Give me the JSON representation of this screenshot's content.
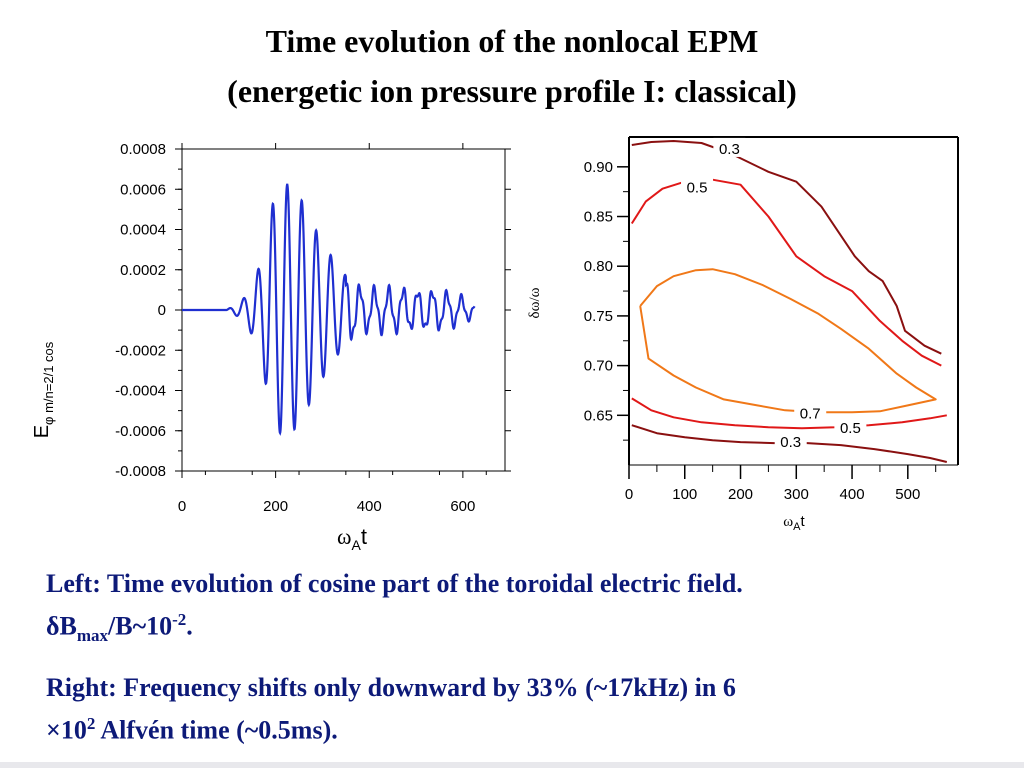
{
  "title": {
    "line1": "Time evolution of the nonlocal EPM",
    "line2": "(energetic ion pressure profile I: classical)"
  },
  "chart_data": [
    {
      "type": "line",
      "ylabel_main": "E",
      "ylabel_sub": "φ m/n=2/1 cos",
      "xlabel_main": "ω",
      "xlabel_sub": "A",
      "xlabel_tail": "t",
      "xlim": [
        0,
        690
      ],
      "ylim": [
        -0.0008,
        0.0008
      ],
      "x_ticks": [
        "0",
        "200",
        "400",
        "600"
      ],
      "x_tick_values": [
        0,
        200,
        400,
        600
      ],
      "y_ticks": [
        "0.0008",
        "0.0006",
        "0.0004",
        "0.0002",
        "0",
        "-0.0002",
        "-0.0004",
        "-0.0006",
        "-0.0008"
      ],
      "y_tick_values": [
        0.0008,
        0.0006,
        0.0004,
        0.0002,
        0,
        -0.0002,
        -0.0004,
        -0.0006,
        -0.0008
      ],
      "line_color": "#1f2fd0",
      "envelope": {
        "x": [
          0,
          95,
          110,
          125,
          140,
          155,
          170,
          185,
          200,
          215,
          230,
          245,
          260,
          275,
          290,
          310,
          330,
          350,
          370,
          390,
          410,
          430,
          450,
          470,
          490,
          510,
          530,
          550,
          570,
          590,
          610,
          625
        ],
        "amplitude": [
          0,
          0,
          2e-05,
          4e-05,
          8e-05,
          0.00015,
          0.00025,
          0.00045,
          0.00058,
          0.00063,
          0.00062,
          0.00058,
          0.00053,
          0.00045,
          0.00038,
          0.0003,
          0.00023,
          0.00017,
          0.00012,
          0.0001,
          0.0001,
          0.0001,
          0.0001,
          0.0001,
          9e-05,
          9e-05,
          9e-05,
          9e-05,
          8e-05,
          7e-05,
          5e-05,
          3e-05
        ]
      },
      "period": 31
    },
    {
      "type": "contour",
      "ylabel": "δω/ω",
      "xlabel_main": "ω",
      "xlabel_sub": "A",
      "xlabel_tail": "t",
      "xlim": [
        0,
        590
      ],
      "ylim": [
        0.6,
        0.93
      ],
      "x_ticks": [
        "0",
        "100",
        "200",
        "300",
        "400",
        "500"
      ],
      "x_tick_values": [
        0,
        100,
        200,
        300,
        400,
        500
      ],
      "y_ticks": [
        "0.90",
        "0.85",
        "0.80",
        "0.75",
        "0.70",
        "0.65"
      ],
      "y_tick_values": [
        0.9,
        0.85,
        0.8,
        0.75,
        0.7,
        0.65
      ],
      "contours": [
        {
          "level": "0.3",
          "color": "#8a1010",
          "paths": [
            {
              "x": [
                5,
                40,
                80,
                130,
                180,
                250,
                300,
                345,
                375,
                405,
                430,
                455,
                480,
                495,
                530,
                560
              ],
              "y": [
                0.922,
                0.925,
                0.926,
                0.924,
                0.914,
                0.895,
                0.885,
                0.86,
                0.835,
                0.81,
                0.795,
                0.785,
                0.76,
                0.735,
                0.72,
                0.712
              ]
            },
            {
              "x": [
                5,
                50,
                100,
                150,
                200,
                260,
                320,
                380,
                440,
                500,
                540,
                570
              ],
              "y": [
                0.64,
                0.632,
                0.628,
                0.625,
                0.623,
                0.622,
                0.622,
                0.62,
                0.616,
                0.611,
                0.607,
                0.603
              ]
            }
          ],
          "labels": [
            {
              "text": "0.3",
              "x": 180,
              "y": 0.919
            },
            {
              "text": "0.3",
              "x": 290,
              "y": 0.624
            }
          ]
        },
        {
          "level": "0.5",
          "color": "#e01818",
          "paths": [
            {
              "x": [
                5,
                30,
                60,
                100,
                150,
                200,
                250,
                300,
                350,
                400,
                450,
                490,
                525,
                560
              ],
              "y": [
                0.843,
                0.865,
                0.878,
                0.885,
                0.887,
                0.882,
                0.85,
                0.81,
                0.79,
                0.775,
                0.745,
                0.725,
                0.71,
                0.7
              ]
            },
            {
              "x": [
                5,
                40,
                80,
                130,
                190,
                250,
                310,
                370,
                430,
                490,
                540,
                570
              ],
              "y": [
                0.667,
                0.655,
                0.648,
                0.643,
                0.64,
                0.638,
                0.637,
                0.638,
                0.64,
                0.643,
                0.647,
                0.65
              ]
            }
          ],
          "labels": [
            {
              "text": "0.5",
              "x": 122,
              "y": 0.88
            },
            {
              "text": "0.5",
              "x": 397,
              "y": 0.638
            }
          ]
        },
        {
          "level": "0.7",
          "color": "#f07818",
          "paths": [
            {
              "x": [
                20,
                50,
                80,
                120,
                150,
                190,
                240,
                290,
                340,
                380,
                430,
                480,
                515,
                550,
                500,
                450,
                400,
                340,
                280,
                230,
                170,
                120,
                80,
                35,
                20
              ],
              "y": [
                0.76,
                0.78,
                0.79,
                0.796,
                0.797,
                0.792,
                0.781,
                0.767,
                0.752,
                0.737,
                0.717,
                0.692,
                0.678,
                0.666,
                0.66,
                0.654,
                0.653,
                0.653,
                0.655,
                0.66,
                0.666,
                0.678,
                0.69,
                0.707,
                0.76
              ]
            }
          ],
          "labels": [
            {
              "text": "0.7",
              "x": 325,
              "y": 0.653
            }
          ]
        }
      ]
    }
  ],
  "caption": {
    "p1_line1": "Left: Time evolution of cosine part of the toroidal electric field.",
    "p1_delta": "δ",
    "p1_B": "B",
    "p1_sub": "max",
    "p1_rest": "/B~10",
    "p1_sup": "-2",
    "p1_end": ".",
    "p2_text": "Right: Frequency shifts only downward by 33% (~17kHz) in 6",
    "p2_times": "×10",
    "p2_sup": "2",
    "p2_end": " Alfvén time (~0.5ms)."
  },
  "colors": {
    "caption_text": "#0d1a78",
    "contour_03": "#8a1010",
    "contour_05": "#e01818",
    "contour_07": "#f07818"
  }
}
